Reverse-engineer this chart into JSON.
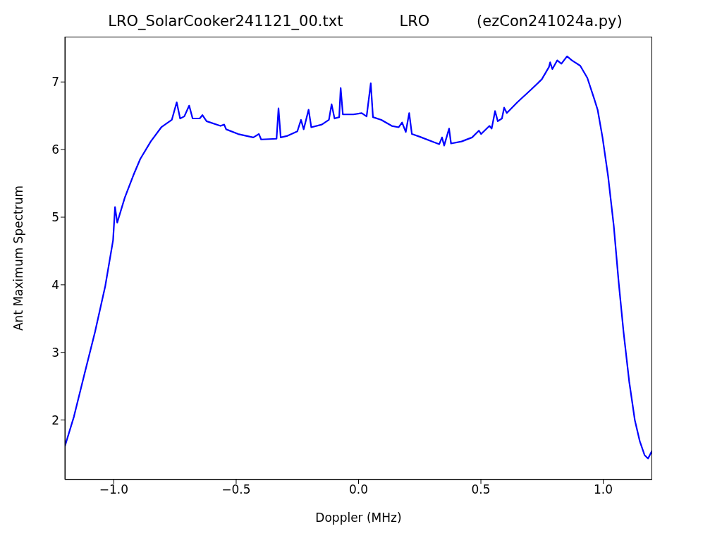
{
  "chart_data": {
    "type": "line",
    "title": "LRO_SolarCooker241121_00.txt            LRO          (ezCon241024a.py)",
    "xlabel": "Doppler (MHz)",
    "ylabel": "Ant Maximum Spectrum",
    "xlim": [
      -1.2,
      1.2
    ],
    "ylim": [
      1.12,
      7.67
    ],
    "xticks": [
      {
        "value": -1,
        "label": "−1.0"
      },
      {
        "value": -0.5,
        "label": "−0.5"
      },
      {
        "value": 0,
        "label": "0.0"
      },
      {
        "value": 0.5,
        "label": "0.5"
      },
      {
        "value": 1,
        "label": "1.0"
      }
    ],
    "yticks": [
      2,
      3,
      4,
      5,
      6,
      7
    ],
    "grid": false,
    "legend": false,
    "marker": "none",
    "line_style": "solid",
    "x": [
      -1.2,
      -1.163,
      -1.12,
      -1.077,
      -1.035,
      -1.003,
      -0.995,
      -0.986,
      -0.955,
      -0.92,
      -0.892,
      -0.849,
      -0.806,
      -0.763,
      -0.743,
      -0.729,
      -0.712,
      -0.692,
      -0.678,
      -0.649,
      -0.638,
      -0.621,
      -0.564,
      -0.549,
      -0.541,
      -0.492,
      -0.43,
      -0.407,
      -0.398,
      -0.335,
      -0.327,
      -0.318,
      -0.293,
      -0.25,
      -0.235,
      -0.224,
      -0.204,
      -0.193,
      -0.15,
      -0.121,
      -0.11,
      -0.098,
      -0.079,
      -0.073,
      -0.064,
      -0.021,
      0.013,
      0.033,
      0.05,
      0.059,
      0.093,
      0.136,
      0.164,
      0.178,
      0.193,
      0.207,
      0.218,
      0.25,
      0.307,
      0.33,
      0.341,
      0.35,
      0.37,
      0.378,
      0.421,
      0.464,
      0.492,
      0.501,
      0.535,
      0.544,
      0.558,
      0.569,
      0.586,
      0.595,
      0.606,
      0.649,
      0.706,
      0.749,
      0.778,
      0.783,
      0.792,
      0.812,
      0.829,
      0.852,
      0.872,
      0.906,
      0.935,
      0.963,
      0.977,
      0.997,
      1.02,
      1.043,
      1.063,
      1.083,
      1.106,
      1.129,
      1.149,
      1.169,
      1.183,
      1.2
    ],
    "series": [
      {
        "color": "#0000ff",
        "values": [
          1.61,
          2.05,
          2.68,
          3.3,
          3.98,
          4.66,
          5.15,
          4.92,
          5.29,
          5.62,
          5.86,
          6.12,
          6.33,
          6.44,
          6.7,
          6.46,
          6.49,
          6.65,
          6.46,
          6.46,
          6.51,
          6.42,
          6.35,
          6.37,
          6.3,
          6.23,
          6.18,
          6.23,
          6.15,
          6.16,
          6.61,
          6.18,
          6.2,
          6.27,
          6.44,
          6.3,
          6.59,
          6.33,
          6.37,
          6.44,
          6.67,
          6.46,
          6.48,
          6.91,
          6.52,
          6.52,
          6.54,
          6.49,
          6.98,
          6.48,
          6.44,
          6.35,
          6.33,
          6.4,
          6.26,
          6.54,
          6.23,
          6.19,
          6.11,
          6.08,
          6.18,
          6.06,
          6.31,
          6.09,
          6.12,
          6.18,
          6.28,
          6.23,
          6.35,
          6.31,
          6.57,
          6.42,
          6.46,
          6.62,
          6.54,
          6.7,
          6.89,
          7.04,
          7.22,
          7.29,
          7.19,
          7.32,
          7.27,
          7.38,
          7.32,
          7.24,
          7.06,
          6.75,
          6.59,
          6.18,
          5.6,
          4.87,
          4.04,
          3.3,
          2.57,
          2.0,
          1.69,
          1.48,
          1.43,
          1.55
        ]
      }
    ]
  }
}
